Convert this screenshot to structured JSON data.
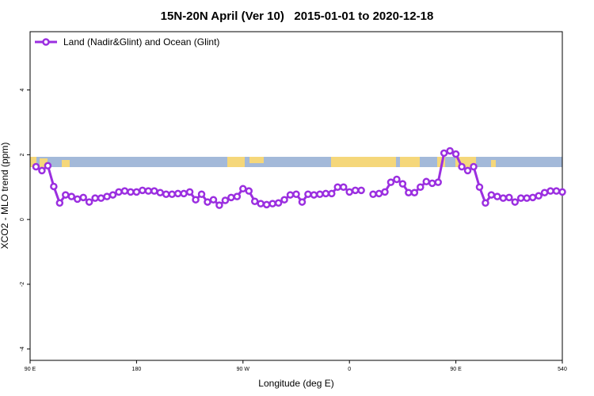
{
  "chart_data": {
    "type": "line",
    "title": "15N-20N April (Ver 10)   2015-01-01 to 2020-12-18",
    "xlabel": "Longitude (deg E)",
    "ylabel": "XCO2 - MLO trend (ppm)",
    "xlim": [
      90,
      540
    ],
    "ylim": [
      -4.35,
      5.8
    ],
    "xticks": [
      {
        "value": 90,
        "label": "90 E"
      },
      180,
      {
        "value": 270,
        "label": "90 W"
      },
      {
        "value": 360,
        "label": "0"
      },
      {
        "value": 450,
        "label": "90 E"
      },
      540
    ],
    "yticks": [
      -4,
      -2,
      0,
      2,
      4
    ],
    "legend": "top-left",
    "x": [
      95,
      100,
      105,
      110,
      115,
      120,
      125,
      130,
      135,
      140,
      145,
      150,
      155,
      160,
      165,
      170,
      175,
      180,
      185,
      190,
      195,
      200,
      205,
      210,
      215,
      220,
      225,
      230,
      235,
      240,
      245,
      250,
      255,
      260,
      265,
      270,
      275,
      280,
      285,
      290,
      295,
      300,
      305,
      310,
      315,
      320,
      325,
      330,
      335,
      340,
      345,
      350,
      355,
      360,
      365,
      370,
      375,
      380,
      385,
      390,
      395,
      400,
      405,
      410,
      415,
      420,
      425,
      430,
      435,
      440,
      445,
      450,
      455,
      460,
      465,
      470,
      475,
      480,
      485,
      490,
      495,
      500,
      505,
      510,
      515,
      520,
      525,
      530,
      535,
      540
    ],
    "series": [
      {
        "name": "Land (Nadir&Glint) and Ocean (Glint)",
        "color": "#9b2fe0",
        "values": [
          1.63,
          1.51,
          1.66,
          1.02,
          0.51,
          0.76,
          0.71,
          0.63,
          0.68,
          0.54,
          0.66,
          0.66,
          0.71,
          0.76,
          0.85,
          0.88,
          0.85,
          0.85,
          0.9,
          0.88,
          0.88,
          0.83,
          0.78,
          0.78,
          0.8,
          0.8,
          0.85,
          0.61,
          0.78,
          0.54,
          0.61,
          0.44,
          0.59,
          0.68,
          0.71,
          0.95,
          0.88,
          0.56,
          0.49,
          0.46,
          0.49,
          0.51,
          0.61,
          0.76,
          0.78,
          0.54,
          0.78,
          0.76,
          0.78,
          0.8,
          0.8,
          1.0,
          1.0,
          0.85,
          0.9,
          0.9,
          null,
          0.78,
          0.8,
          0.85,
          1.15,
          1.24,
          1.1,
          0.83,
          0.83,
          1.0,
          1.17,
          1.12,
          1.15,
          2.05,
          2.12,
          2.02,
          1.63,
          1.51,
          1.63,
          1.0,
          0.51,
          0.76,
          0.71,
          0.66,
          0.68,
          0.54,
          0.66,
          0.66,
          0.68,
          0.73,
          0.83,
          0.88,
          0.88,
          0.85
        ]
      }
    ]
  }
}
